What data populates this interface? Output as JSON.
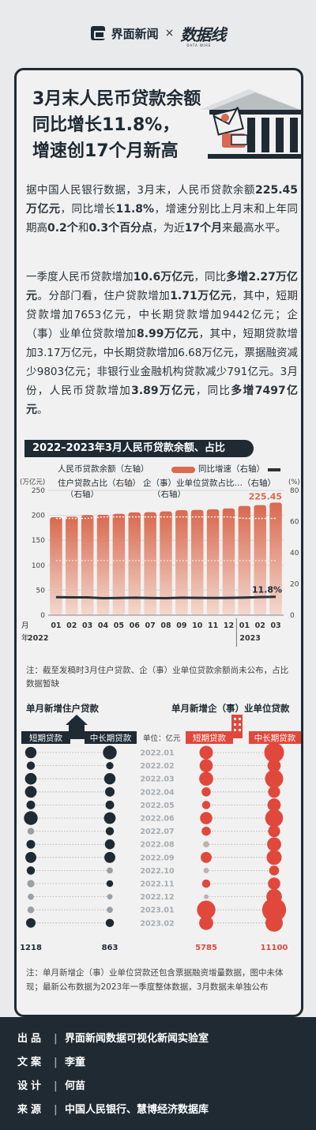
{
  "brand": {
    "left": "界面新闻",
    "x": "×",
    "right": "数据线",
    "right_sub": "DATA WIRE"
  },
  "headline": [
    "3月末人民币贷款余额",
    "同比增长11.8%，",
    "增速创17个月新高"
  ],
  "para1": [
    {
      "t": "据中国人民银行数据，3月末，人民币贷款余额"
    },
    {
      "t": "225.45万亿元",
      "b": true
    },
    {
      "t": "，同比增长"
    },
    {
      "t": "11.8%",
      "b": true
    },
    {
      "t": "，增速分别比上月末和上年同期高"
    },
    {
      "t": "0.2个",
      "b": true
    },
    {
      "t": "和"
    },
    {
      "t": "0.3个百分点",
      "b": true
    },
    {
      "t": "，为近"
    },
    {
      "t": "17个月",
      "b": true
    },
    {
      "t": "来最高水平。"
    }
  ],
  "para2": [
    {
      "t": "一季度人民币贷款增加"
    },
    {
      "t": "10.6万亿元",
      "b": true
    },
    {
      "t": "，同比"
    },
    {
      "t": "多增2.27万亿元",
      "b": true
    },
    {
      "t": "。分部门看，住户贷款增加"
    },
    {
      "t": "1.71万亿元",
      "b": true
    },
    {
      "t": "，其中，短期贷款增加7653亿元，中长期贷款增加9442亿元；企（事）业单位贷款增加"
    },
    {
      "t": "8.99万亿元",
      "b": true
    },
    {
      "t": "，其中，短期贷款增加3.17万亿元，中长期贷款增加6.68万亿元，票据融资减少9803亿元；非银行业金融机构贷款减少791亿元。3月份，人民币贷款增加"
    },
    {
      "t": "3.89万亿元",
      "b": true
    },
    {
      "t": "，同比"
    },
    {
      "t": "多增7497亿元",
      "b": true
    },
    {
      "t": "。"
    }
  ],
  "section_title": "2022–2023年3月人民币贷款余额、占比",
  "chart_data": [
    {
      "type": "bar",
      "legend": {
        "bar": "人民币贷款余额（左轴）",
        "growth": "同比增速（右轴）",
        "household": "住户贷款占比（右轴）",
        "enterprise": "企（事）业单位贷款占比…（右轴）"
      },
      "left_unit": "(万亿元)",
      "right_unit": "(%)",
      "left_ticks": [
        "0",
        "50",
        "100",
        "150",
        "200",
        "250"
      ],
      "right_ticks": [
        "0",
        "20",
        "40",
        "60",
        "80"
      ],
      "ylim_left": [
        0,
        250
      ],
      "ylim_right": [
        0,
        80
      ],
      "month_label": "月",
      "year_label": "年",
      "categories": [
        "01",
        "02",
        "03",
        "04",
        "05",
        "06",
        "07",
        "08",
        "09",
        "10",
        "11",
        "12",
        "01",
        "02",
        "03"
      ],
      "years": [
        "2022",
        "2023"
      ],
      "balance": [
        196.2,
        197.4,
        200.5,
        201.1,
        203.1,
        205.9,
        206.3,
        207.8,
        210.3,
        210.9,
        212.1,
        213.9,
        218.8,
        220.6,
        225.45
      ],
      "growth": [
        11.5,
        11.4,
        11.4,
        10.9,
        11.0,
        11.2,
        11.0,
        10.9,
        11.2,
        11.1,
        11.0,
        11.1,
        11.3,
        11.6,
        11.8
      ],
      "household_share": [
        62,
        62,
        62,
        63,
        63,
        63,
        63,
        63,
        63,
        63,
        63,
        63,
        62,
        62,
        62
      ],
      "enterprise_share": [
        35,
        35,
        35,
        35,
        35,
        35,
        35,
        35,
        35,
        35,
        35,
        35,
        35,
        35,
        35
      ],
      "label_last_balance": "225.45",
      "label_last_growth": "11.8%",
      "colors": {
        "bar": "#d9694f",
        "growth": "#2b3238",
        "share": "#e4a08c"
      }
    },
    {
      "type": "scatter",
      "title_left": "单月新增住户贷款",
      "title_right": "单月新增企（事）业单位贷款",
      "unit": "单位：亿元",
      "col_labels_left": [
        "短期贷款",
        "中长期贷款"
      ],
      "col_labels_right": [
        "短期贷款",
        "中长期贷款"
      ],
      "months": [
        "2022.01",
        "2022.02",
        "2022.03",
        "2022.04",
        "2022.05",
        "2022.06",
        "2022.07",
        "2022.08",
        "2022.09",
        "2022.10",
        "2022.11",
        "2022.12",
        "2023.01",
        "2023.02"
      ],
      "household_short": [
        1.7,
        0.9,
        1.8,
        1.8,
        1.0,
        2.5,
        0.6,
        1.0,
        1.6,
        0.9,
        0.7,
        0.5,
        0.6,
        1.2
      ],
      "household_long": [
        2.5,
        0.7,
        1.7,
        1.2,
        1.0,
        1.8,
        0.9,
        1.3,
        1.6,
        0.5,
        0.6,
        0.4,
        0.5,
        0.9
      ],
      "enterprise_short": [
        2.4,
        2.3,
        2.6,
        1.1,
        0.9,
        2.0,
        1.1,
        0.5,
        1.6,
        0.4,
        0.9,
        0.3,
        4.5,
        2.6
      ],
      "enterprise_long": [
        5.2,
        2.3,
        4.4,
        1.9,
        2.3,
        4.2,
        1.9,
        2.6,
        3.0,
        1.3,
        2.0,
        3.2,
        7.6,
        4.0
      ],
      "bottom_left": "1218",
      "bottom_mid": "863",
      "bottom_right_a": "5785",
      "bottom_right_b": "11100",
      "colors": {
        "household": "#1f2a33",
        "enterprise": "#e0483c"
      }
    }
  ],
  "note1": "注：截至发稿时3月住户贷款、企（事）业单位贷款余额尚未公布，占比数据暂缺",
  "note2": "注：单月新增企（事）业单位贷款还包含票据融资增量数据，图中未体现；最新公布数据为2023年一季度整体数据，3月数据未单独公布",
  "footer": [
    {
      "k": "出品",
      "v": "界面新闻数据可视化新闻实验室"
    },
    {
      "k": "文案",
      "v": "李童"
    },
    {
      "k": "设计",
      "v": "何苗"
    },
    {
      "k": "来源",
      "v": "中国人民银行、慧博经济数据库"
    }
  ]
}
